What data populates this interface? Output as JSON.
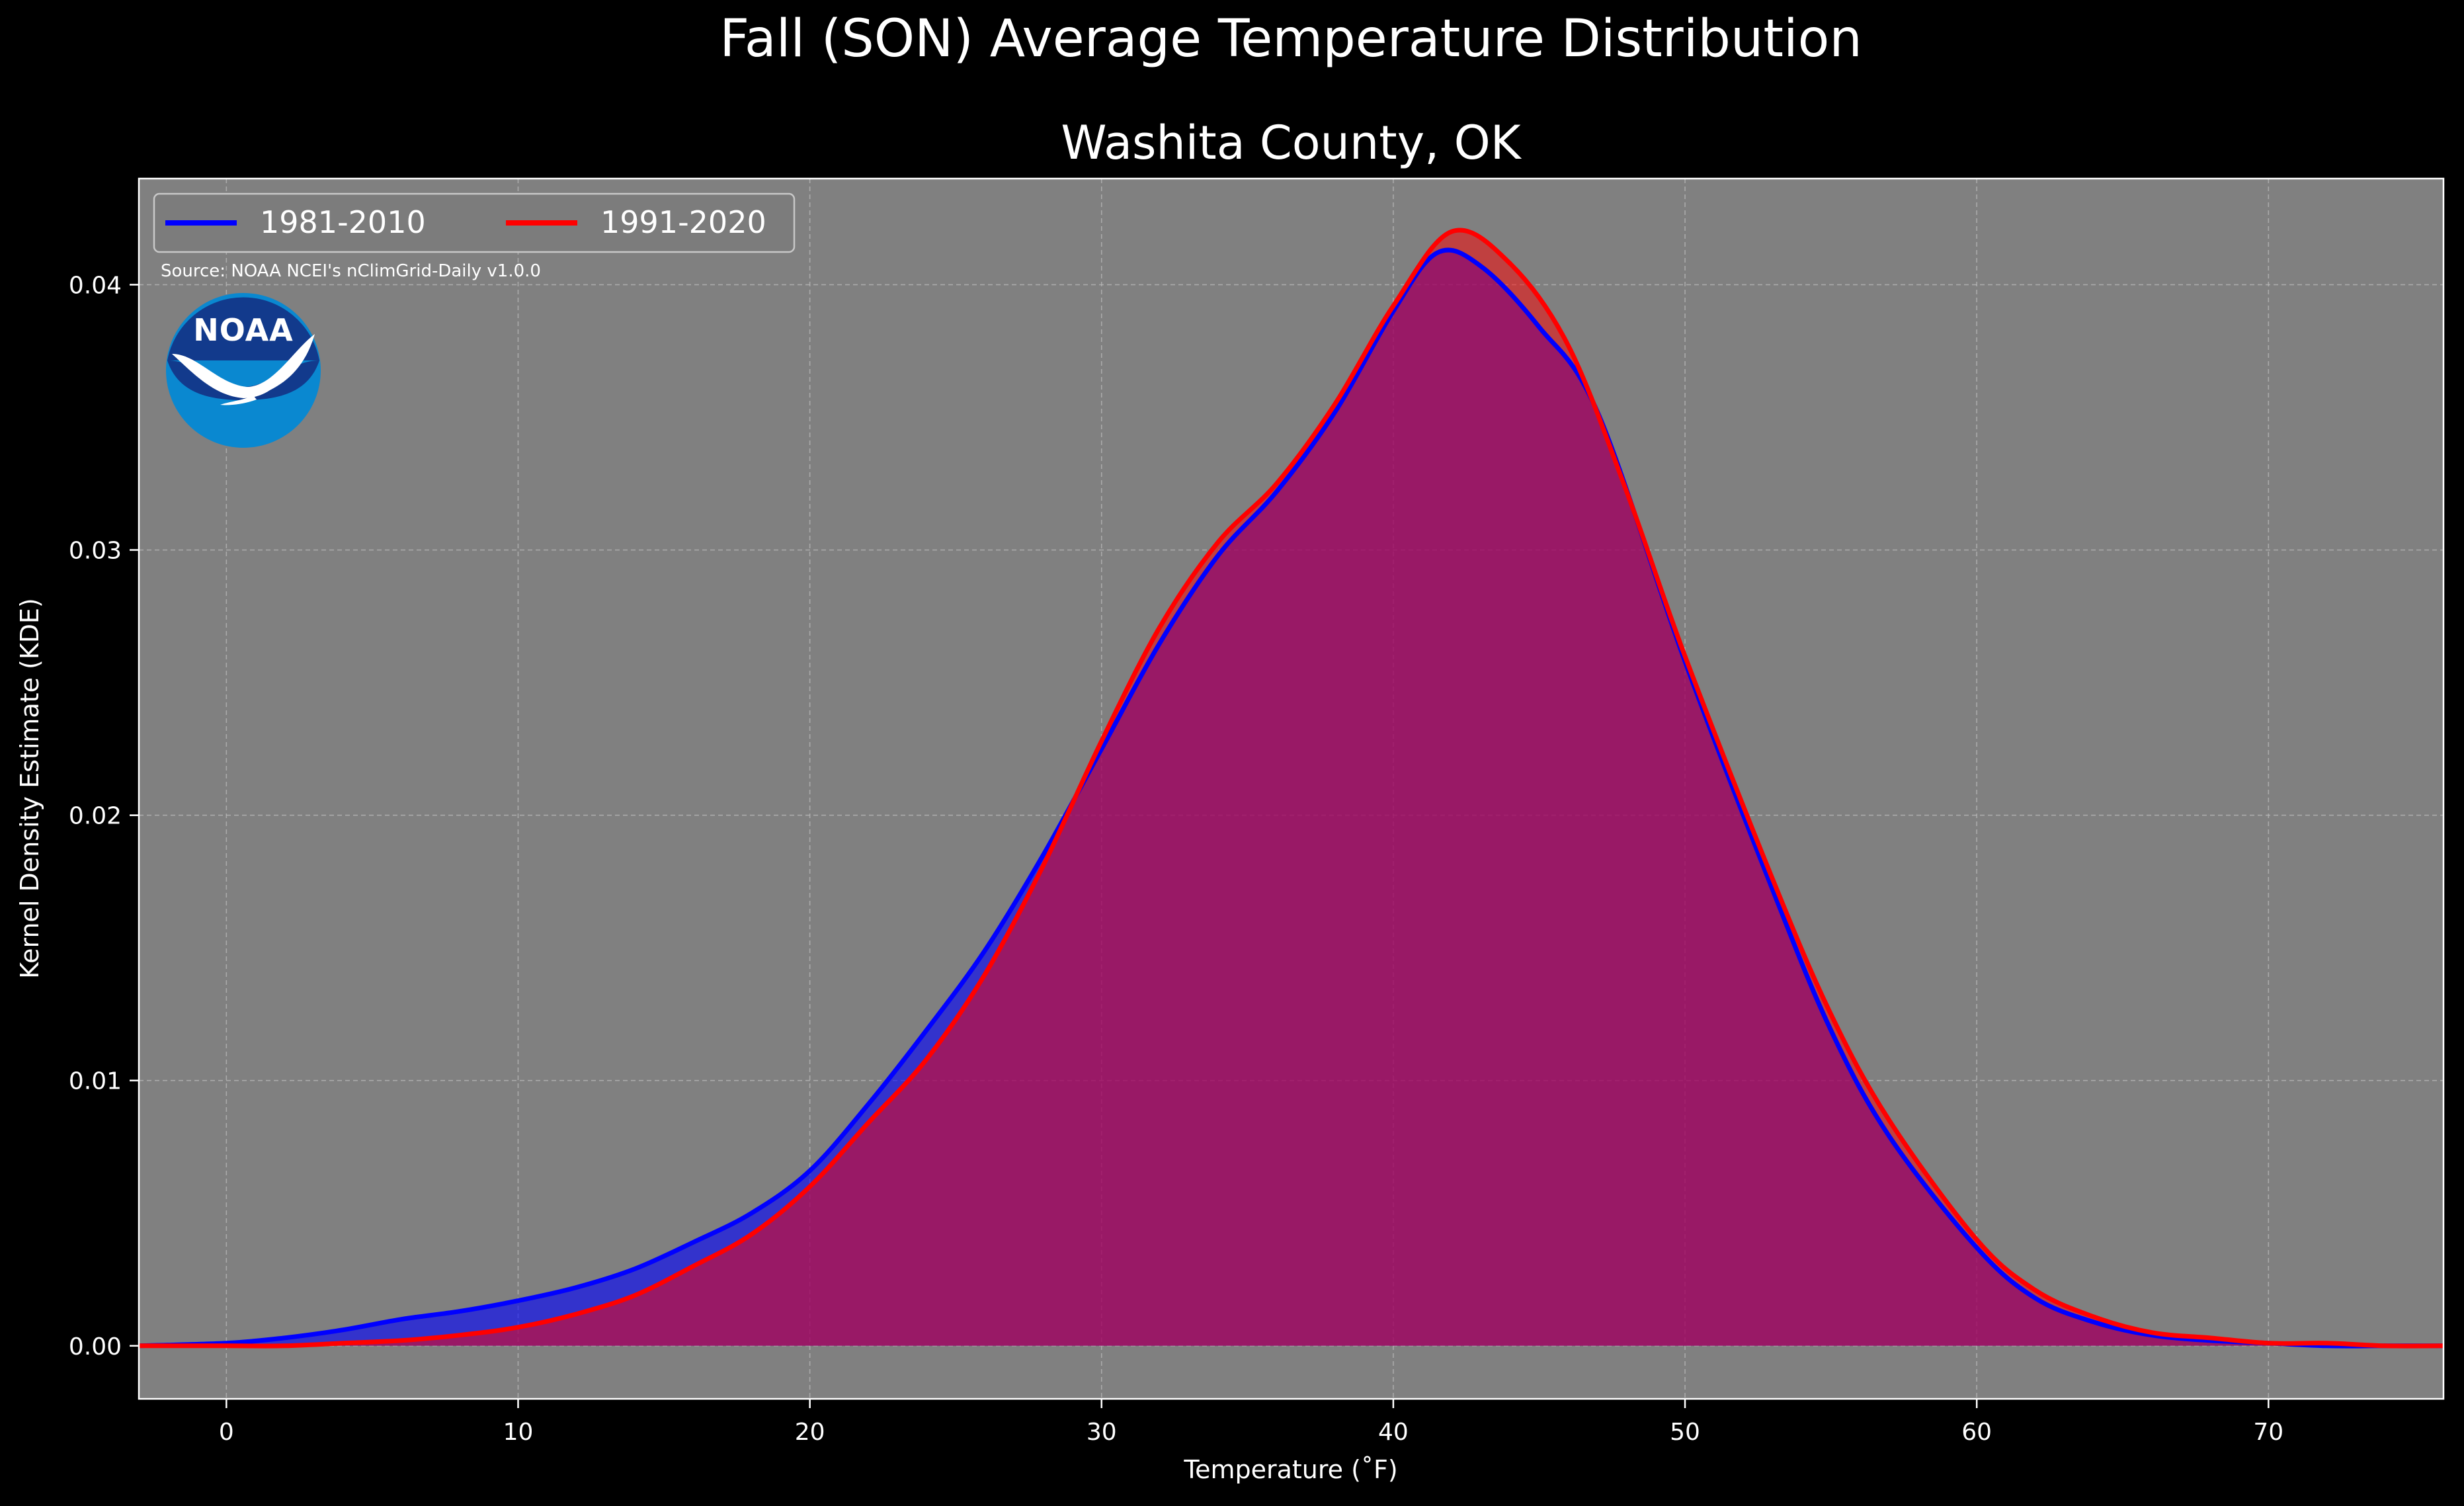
{
  "colors": {
    "background": "#000000",
    "plot_background": "#808080",
    "grid": "#b8b8b8",
    "text": "#ffffff",
    "series_1981_2010": "#0000ff",
    "series_1991_2020": "#ff0000",
    "noaa_dark_blue": "#123a8c",
    "noaa_light_blue": "#0a88d0"
  },
  "logo": {
    "icon": "noaa-logo-icon",
    "text": "NOAA"
  },
  "chart_data": {
    "type": "area",
    "title": "Fall (SON) Average Temperature Distribution",
    "subtitle": "Washita County, OK",
    "xlabel": "Temperature (˚F)",
    "ylabel": "Kernel Density Estimate (KDE)",
    "xlim": [
      -3,
      76
    ],
    "ylim": [
      -0.002,
      0.044
    ],
    "x_ticks": [
      0,
      10,
      20,
      30,
      40,
      50,
      60,
      70
    ],
    "x_tick_labels": [
      "0",
      "10",
      "20",
      "30",
      "40",
      "50",
      "60",
      "70"
    ],
    "y_ticks": [
      0.0,
      0.01,
      0.02,
      0.03,
      0.04
    ],
    "y_tick_labels": [
      "0.00",
      "0.01",
      "0.02",
      "0.03",
      "0.04"
    ],
    "grid": true,
    "legend_position": "top-left",
    "annotation": "Source: NOAA NCEI's nClimGrid-Daily v1.0.0",
    "series": [
      {
        "name": "1981-2010",
        "color": "#0000ff",
        "fill": "#0000ff",
        "x": [
          -3,
          0,
          2,
          4,
          6,
          8,
          10,
          12,
          14,
          16,
          18,
          20,
          22,
          24,
          26,
          28,
          30,
          32,
          34,
          36,
          38,
          40,
          41.5,
          43,
          45,
          47,
          50,
          53,
          55,
          57,
          60,
          62,
          64,
          66,
          68,
          70,
          72,
          74,
          76
        ],
        "y": [
          0.0,
          0.0001,
          0.0003,
          0.0006,
          0.001,
          0.0013,
          0.0017,
          0.0022,
          0.0029,
          0.0039,
          0.005,
          0.0066,
          0.0091,
          0.0119,
          0.0149,
          0.0185,
          0.0225,
          0.0265,
          0.0298,
          0.0322,
          0.0352,
          0.039,
          0.0412,
          0.0407,
          0.0384,
          0.0352,
          0.0258,
          0.0172,
          0.0119,
          0.0079,
          0.0037,
          0.0018,
          0.0009,
          0.0004,
          0.0002,
          0.0001,
          0.0,
          0.0,
          0.0
        ]
      },
      {
        "name": "1991-2020",
        "color": "#ff0000",
        "fill": "#ff0000",
        "x": [
          -3,
          0,
          2,
          4,
          6,
          8,
          10,
          12,
          14,
          16,
          18,
          20,
          22,
          24,
          26,
          28,
          30,
          32,
          34,
          36,
          38,
          40,
          42,
          44,
          46,
          48,
          50,
          53,
          55,
          57,
          60,
          62,
          64,
          66,
          68,
          70,
          72,
          74,
          76
        ],
        "y": [
          0.0,
          0.0,
          0.0,
          0.0001,
          0.0002,
          0.0004,
          0.0007,
          0.0012,
          0.0019,
          0.003,
          0.0042,
          0.006,
          0.0084,
          0.0108,
          0.014,
          0.0181,
          0.0228,
          0.0271,
          0.0303,
          0.0325,
          0.0355,
          0.0392,
          0.042,
          0.0408,
          0.0377,
          0.0322,
          0.026,
          0.0176,
          0.0125,
          0.0085,
          0.004,
          0.0021,
          0.0011,
          0.0005,
          0.0003,
          0.0001,
          0.0001,
          0.0,
          0.0
        ]
      }
    ]
  }
}
